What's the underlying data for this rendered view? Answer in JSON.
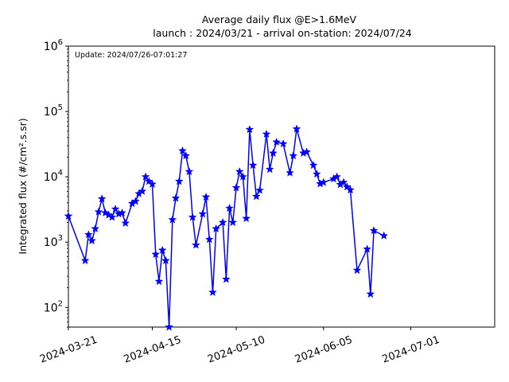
{
  "chart_data": {
    "type": "line",
    "title": "Average daily flux @E>1.6MeV",
    "subtitle": "launch : 2024/03/21 - arrival on-station: 2024/07/24",
    "annotation": "Update: 2024/07/26-07:01:27",
    "ylabel": "Integrated flux (#/cm².s.sr)",
    "xlabel": "",
    "yscale": "log",
    "ylim": [
      50,
      1000000
    ],
    "xlim": [
      "2024-03-21",
      "2024-07-26"
    ],
    "grid": false,
    "y_ticks": [
      {
        "value": 100,
        "base": "10",
        "exp": "2"
      },
      {
        "value": 1000,
        "base": "10",
        "exp": "3"
      },
      {
        "value": 10000,
        "base": "10",
        "exp": "4"
      },
      {
        "value": 100000,
        "base": "10",
        "exp": "5"
      },
      {
        "value": 1000000,
        "base": "10",
        "exp": "6"
      }
    ],
    "x_ticks": [
      "2024-03-21",
      "2024-04-15",
      "2024-05-10",
      "2024-06-05",
      "2024-07-01"
    ],
    "series": [
      {
        "color": "#0000ff",
        "marker": "star",
        "points": [
          [
            "2024-03-21",
            2500
          ],
          [
            "2024-03-26",
            520
          ],
          [
            "2024-03-27",
            1300
          ],
          [
            "2024-03-28",
            1050
          ],
          [
            "2024-03-29",
            1600
          ],
          [
            "2024-03-30",
            2900
          ],
          [
            "2024-03-31",
            4600
          ],
          [
            "2024-04-01",
            2800
          ],
          [
            "2024-04-02",
            2600
          ],
          [
            "2024-04-03",
            2400
          ],
          [
            "2024-04-04",
            3200
          ],
          [
            "2024-04-05",
            2700
          ],
          [
            "2024-04-06",
            2800
          ],
          [
            "2024-04-07",
            1950
          ],
          [
            "2024-04-09",
            3900
          ],
          [
            "2024-04-10",
            4200
          ],
          [
            "2024-04-11",
            5500
          ],
          [
            "2024-04-12",
            6000
          ],
          [
            "2024-04-13",
            10000
          ],
          [
            "2024-04-14",
            8500
          ],
          [
            "2024-04-15",
            7700
          ],
          [
            "2024-04-16",
            650
          ],
          [
            "2024-04-17",
            250
          ],
          [
            "2024-04-18",
            750
          ],
          [
            "2024-04-19",
            520
          ],
          [
            "2024-04-20",
            50
          ],
          [
            "2024-04-21",
            2200
          ],
          [
            "2024-04-22",
            4700
          ],
          [
            "2024-04-23",
            8500
          ],
          [
            "2024-04-24",
            25000
          ],
          [
            "2024-04-25",
            21000
          ],
          [
            "2024-04-26",
            12000
          ],
          [
            "2024-04-27",
            2400
          ],
          [
            "2024-04-28",
            900
          ],
          [
            "2024-04-30",
            2700
          ],
          [
            "2024-05-01",
            4900
          ],
          [
            "2024-05-02",
            1100
          ],
          [
            "2024-05-03",
            170
          ],
          [
            "2024-05-04",
            1600
          ],
          [
            "2024-05-06",
            2000
          ],
          [
            "2024-05-07",
            270
          ],
          [
            "2024-05-08",
            3300
          ],
          [
            "2024-05-09",
            2000
          ],
          [
            "2024-05-10",
            6800
          ],
          [
            "2024-05-11",
            12000
          ],
          [
            "2024-05-12",
            10000
          ],
          [
            "2024-05-13",
            2300
          ],
          [
            "2024-05-14",
            53000
          ],
          [
            "2024-05-15",
            15000
          ],
          [
            "2024-05-16",
            5000
          ],
          [
            "2024-05-17",
            6200
          ],
          [
            "2024-05-19",
            45000
          ],
          [
            "2024-05-20",
            13000
          ],
          [
            "2024-05-21",
            23000
          ],
          [
            "2024-05-22",
            34000
          ],
          [
            "2024-05-24",
            32000
          ],
          [
            "2024-05-26",
            11500
          ],
          [
            "2024-05-27",
            21000
          ],
          [
            "2024-05-28",
            54000
          ],
          [
            "2024-05-30",
            23000
          ],
          [
            "2024-05-31",
            24000
          ],
          [
            "2024-06-02",
            15000
          ],
          [
            "2024-06-03",
            11000
          ],
          [
            "2024-06-04",
            7800
          ],
          [
            "2024-06-05",
            8200
          ],
          [
            "2024-06-08",
            9300
          ],
          [
            "2024-06-09",
            10000
          ],
          [
            "2024-06-10",
            7600
          ],
          [
            "2024-06-11",
            8200
          ],
          [
            "2024-06-12",
            7000
          ],
          [
            "2024-06-13",
            6300
          ],
          [
            "2024-06-15",
            370
          ],
          [
            "2024-06-18",
            780
          ],
          [
            "2024-06-19",
            160
          ],
          [
            "2024-06-20",
            1500
          ],
          [
            "2024-06-23",
            1250
          ]
        ]
      }
    ]
  }
}
